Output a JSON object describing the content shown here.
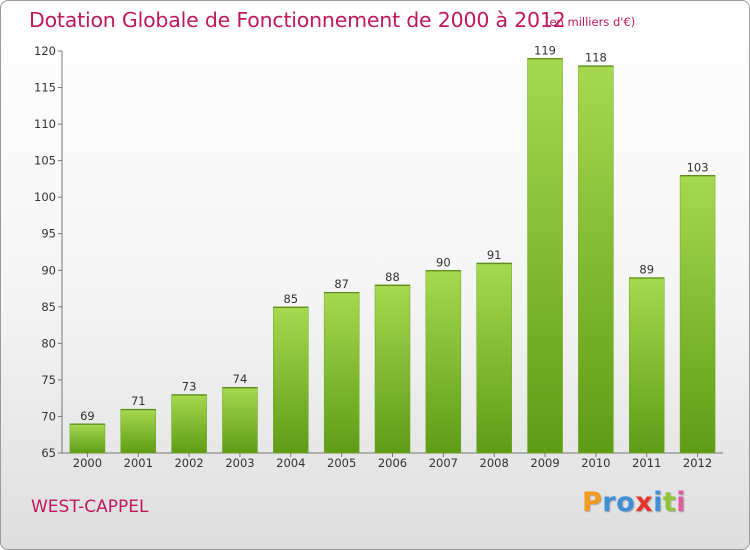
{
  "title": "Dotation Globale de Fonctionnement de 2000 à 2012",
  "subtitle": "(en milliers d'€)",
  "commune": "WEST-CAPPEL",
  "logo": {
    "letters": [
      "P",
      "r",
      "o",
      "x",
      "i",
      "t",
      "i"
    ],
    "colors": [
      "#f39a1f",
      "#3f8fd6",
      "#3f8fd6",
      "#e8322c",
      "#3f8fd6",
      "#8fc43a",
      "#e05aa0"
    ]
  },
  "colors": {
    "bar_light": "#a6d94f",
    "bar_dark": "#5f9c16",
    "text": "#c0185e",
    "axis_text": "#333333"
  },
  "chart_data": {
    "type": "bar",
    "title": "Dotation Globale de Fonctionnement de 2000 à 2012",
    "subtitle": "(en milliers d'€)",
    "xlabel": "",
    "ylabel": "",
    "categories": [
      "2000",
      "2001",
      "2002",
      "2003",
      "2004",
      "2005",
      "2006",
      "2007",
      "2008",
      "2009",
      "2010",
      "2011",
      "2012"
    ],
    "values": [
      69,
      71,
      73,
      74,
      85,
      87,
      88,
      90,
      91,
      119,
      118,
      89,
      103
    ],
    "value_labels": [
      "69",
      "71",
      "73",
      "74",
      "85",
      "87",
      "88",
      "90",
      "91",
      "119",
      "118",
      "89",
      "103"
    ],
    "ylim": [
      65,
      120
    ],
    "yticks": [
      65,
      70,
      75,
      80,
      85,
      90,
      95,
      100,
      105,
      110,
      115,
      120
    ],
    "ytick_labels": [
      "65",
      "70",
      "75",
      "80",
      "85",
      "90",
      "95",
      "100",
      "105",
      "110",
      "115",
      "120"
    ],
    "grid": false,
    "legend": "none"
  }
}
